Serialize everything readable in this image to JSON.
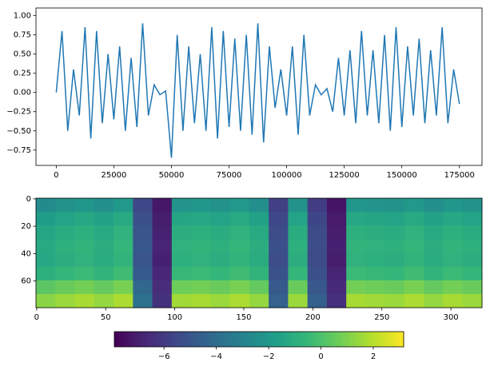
{
  "chart_data": [
    {
      "type": "line",
      "color": "#1f77b4",
      "x": [
        0,
        2500,
        5000,
        7500,
        10000,
        12500,
        15000,
        17500,
        20000,
        22500,
        25000,
        27500,
        30000,
        32500,
        35000,
        37500,
        40000,
        42500,
        45000,
        47500,
        50000,
        52500,
        55000,
        57500,
        60000,
        62500,
        65000,
        67500,
        70000,
        72500,
        75000,
        77500,
        80000,
        82500,
        85000,
        87500,
        90000,
        92500,
        95000,
        97500,
        100000,
        102500,
        105000,
        107500,
        110000,
        112500,
        115000,
        117500,
        120000,
        122500,
        125000,
        127500,
        130000,
        132500,
        135000,
        137500,
        140000,
        142500,
        145000,
        147500,
        150000,
        152500,
        155000,
        157500,
        160000,
        162500,
        165000,
        167500,
        170000,
        172500,
        175000
      ],
      "values": [
        0,
        0.8,
        -0.5,
        0.3,
        -0.3,
        0.85,
        -0.6,
        0.8,
        -0.4,
        0.5,
        -0.35,
        0.6,
        -0.5,
        0.45,
        -0.45,
        0.9,
        -0.3,
        0.1,
        -0.03,
        0.02,
        -0.85,
        0.75,
        -0.5,
        0.6,
        -0.4,
        0.5,
        -0.5,
        0.85,
        -0.6,
        0.8,
        -0.45,
        0.7,
        -0.5,
        0.75,
        -0.55,
        0.9,
        -0.65,
        0.6,
        -0.2,
        0.3,
        -0.3,
        0.6,
        -0.55,
        0.75,
        -0.3,
        0.1,
        -0.03,
        0.05,
        -0.25,
        0.45,
        -0.3,
        0.55,
        -0.4,
        0.8,
        -0.3,
        0.55,
        -0.4,
        0.75,
        -0.5,
        0.85,
        -0.45,
        0.6,
        -0.3,
        0.7,
        -0.4,
        0.55,
        -0.3,
        0.85,
        -0.4,
        0.3,
        -0.15
      ],
      "xlim": [
        -8800,
        184800
      ],
      "ylim": [
        -0.95,
        1.1
      ],
      "xticks": [
        0,
        25000,
        50000,
        75000,
        100000,
        125000,
        150000,
        175000
      ],
      "yticks": [
        {
          "value": 1,
          "label": "1.00"
        },
        {
          "value": 0.75,
          "label": "0.75"
        },
        {
          "value": 0.5,
          "label": "0.50"
        },
        {
          "value": 0.25,
          "label": "0.25"
        },
        {
          "value": 0,
          "label": "0.00"
        },
        {
          "value": -0.25,
          "label": "−0.25"
        },
        {
          "value": -0.5,
          "label": "−0.50"
        },
        {
          "value": -0.75,
          "label": "−0.75"
        }
      ]
    },
    {
      "type": "heatmap",
      "colormap": "viridis",
      "z": [
        [
          -2.6,
          -2.3,
          -2.1,
          -2.4,
          -2.0,
          -5.5,
          -7.2,
          -2.2,
          -2.1,
          -2.3,
          -2.0,
          -2.4,
          -5.8,
          -2.3,
          -5.9,
          -7.3,
          -2.1,
          -2.2,
          -2.3,
          -2.0,
          -2.4,
          -2.1,
          -2.3
        ],
        [
          -1.8,
          -1.5,
          -1.3,
          -1.6,
          -1.2,
          -5.2,
          -7.0,
          -1.4,
          -1.3,
          -1.5,
          -1.2,
          -1.6,
          -5.5,
          -1.5,
          -5.6,
          -7.1,
          -1.3,
          -1.4,
          -1.5,
          -1.2,
          -1.6,
          -1.3,
          -1.5
        ],
        [
          -1.4,
          -1.1,
          -0.9,
          -1.2,
          -0.8,
          -5.0,
          -6.9,
          -1.0,
          -0.9,
          -1.1,
          -0.8,
          -1.2,
          -5.3,
          -1.1,
          -5.4,
          -7.0,
          -0.9,
          -1.0,
          -1.1,
          -0.8,
          -1.2,
          -0.9,
          -1.1
        ],
        [
          -1.2,
          -0.9,
          -0.7,
          -1.0,
          -0.6,
          -4.9,
          -6.8,
          -0.8,
          -0.7,
          -0.9,
          -0.6,
          -1.0,
          -5.2,
          -0.9,
          -5.3,
          -6.9,
          -0.7,
          -0.8,
          -0.9,
          -0.6,
          -1.0,
          -0.7,
          -0.9
        ],
        [
          -1.3,
          -1.0,
          -0.8,
          -1.1,
          -0.7,
          -5.0,
          -6.9,
          -0.9,
          -0.8,
          -1.0,
          -0.7,
          -1.1,
          -5.3,
          -1.0,
          -5.4,
          -7.0,
          -0.8,
          -0.9,
          -1.0,
          -0.7,
          -1.1,
          -0.8,
          -1.0
        ],
        [
          -0.9,
          -0.6,
          -0.4,
          -0.7,
          -0.3,
          -4.8,
          -6.7,
          -0.5,
          -0.4,
          -0.6,
          -0.3,
          -0.7,
          -5.1,
          -0.6,
          -5.2,
          -6.8,
          -0.4,
          -0.5,
          -0.6,
          -0.3,
          -0.7,
          -0.4,
          -0.6
        ],
        [
          0.3,
          0.6,
          0.8,
          0.5,
          0.9,
          -4.2,
          -6.5,
          0.7,
          0.8,
          0.6,
          0.9,
          0.5,
          -4.8,
          0.6,
          -4.9,
          -6.6,
          0.8,
          0.7,
          0.6,
          0.9,
          0.5,
          0.8,
          0.6
        ],
        [
          1.2,
          1.5,
          1.7,
          1.4,
          1.8,
          -3.8,
          -6.3,
          1.6,
          1.7,
          1.5,
          1.8,
          1.4,
          -4.5,
          1.5,
          -4.6,
          -6.4,
          1.7,
          1.6,
          1.5,
          1.8,
          1.4,
          1.7,
          1.5
        ]
      ],
      "xlim": [
        -0.5,
        322.5
      ],
      "ylim": [
        79.5,
        -0.5
      ],
      "xticks": [
        0,
        50,
        100,
        150,
        200,
        250,
        300
      ],
      "yticks": [
        0,
        20,
        40,
        60
      ],
      "clim": [
        -7.9,
        3.16
      ],
      "cticks": [
        {
          "value": -6,
          "label": "−6"
        },
        {
          "value": -4,
          "label": "−4"
        },
        {
          "value": -2,
          "label": "−2"
        },
        0,
        2
      ]
    }
  ]
}
